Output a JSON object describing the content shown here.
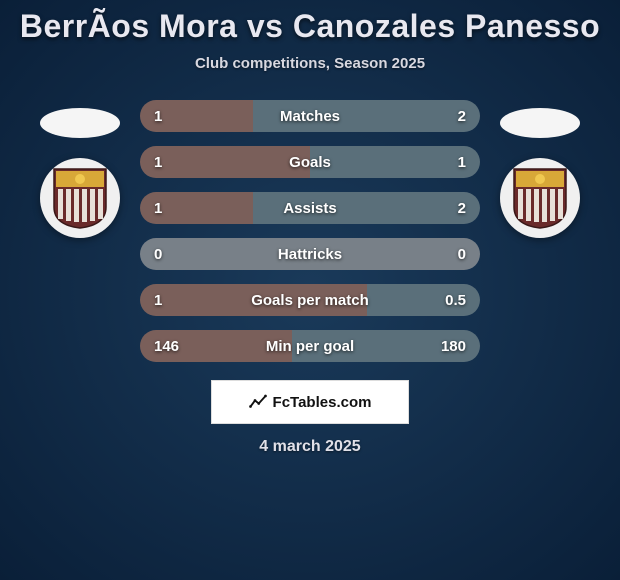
{
  "title": "BerrÃ­os Mora vs Canozales Panesso",
  "subtitle": "Club competitions, Season 2025",
  "date": "4 march 2025",
  "watermark": "FcTables.com",
  "colors": {
    "left_bar": "#7a5f5a",
    "right_bar": "#5a6f7a",
    "neutral_bar": "#788088",
    "bg_start": "#1a3a5a",
    "bg_end": "#0a1f38",
    "text": "#ffffff",
    "shield_fill": "#6a2a2a",
    "shield_top": "#d8a838",
    "shield_stripe": "#6a2a2a",
    "shield_stripe_gap": "#e8e0d8"
  },
  "stats": [
    {
      "label": "Matches",
      "left_val": "1",
      "right_val": "2",
      "left_pct": 33.3,
      "left_zero": false,
      "right_zero": false
    },
    {
      "label": "Goals",
      "left_val": "1",
      "right_val": "1",
      "left_pct": 50,
      "left_zero": false,
      "right_zero": false
    },
    {
      "label": "Assists",
      "left_val": "1",
      "right_val": "2",
      "left_pct": 33.3,
      "left_zero": false,
      "right_zero": false
    },
    {
      "label": "Hattricks",
      "left_val": "0",
      "right_val": "0",
      "left_pct": 50,
      "left_zero": true,
      "right_zero": true
    },
    {
      "label": "Goals per match",
      "left_val": "1",
      "right_val": "0.5",
      "left_pct": 66.7,
      "left_zero": false,
      "right_zero": false
    },
    {
      "label": "Min per goal",
      "left_val": "146",
      "right_val": "180",
      "left_pct": 44.8,
      "left_zero": false,
      "right_zero": false
    }
  ]
}
